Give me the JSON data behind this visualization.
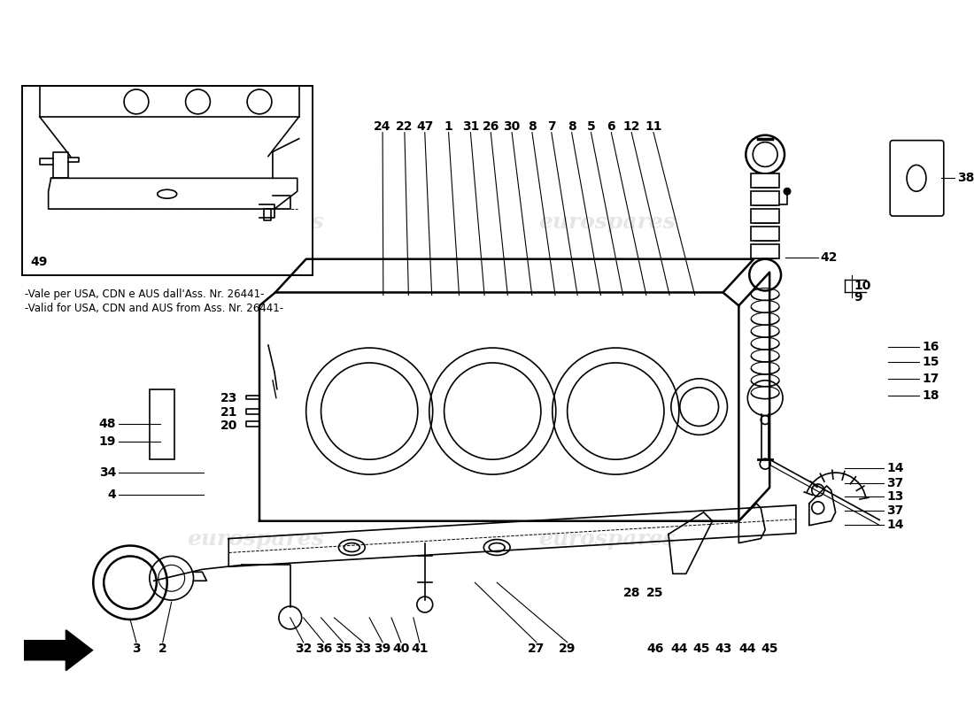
{
  "background_color": "#ffffff",
  "diagram_color": "#000000",
  "watermark_color": "#c8c8c8",
  "watermark_text": "eurospares",
  "note_text1": "-Vale per USA, CDN e AUS dall'Ass. Nr. 26441-",
  "note_text2": "-Valid for USA, CDN and AUS from Ass. Nr. 26441-",
  "part_number_inset": "49",
  "top_labels": [
    [
      "24",
      435,
      148
    ],
    [
      "22",
      460,
      148
    ],
    [
      "47",
      483,
      148
    ],
    [
      "1",
      510,
      148
    ],
    [
      "31",
      535,
      148
    ],
    [
      "26",
      558,
      148
    ],
    [
      "30",
      582,
      148
    ],
    [
      "8",
      605,
      148
    ],
    [
      "7",
      627,
      148
    ],
    [
      "8",
      650,
      148
    ],
    [
      "5",
      672,
      148
    ],
    [
      "6",
      695,
      148
    ],
    [
      "12",
      718,
      148
    ],
    [
      "11",
      743,
      148
    ]
  ],
  "right_labels": [
    [
      "42",
      875,
      265
    ],
    [
      "10",
      950,
      310
    ],
    [
      "9",
      950,
      323
    ],
    [
      "38",
      1022,
      278
    ],
    [
      "16",
      1042,
      395
    ],
    [
      "15",
      1042,
      412
    ],
    [
      "17",
      1042,
      430
    ],
    [
      "18",
      1042,
      447
    ]
  ],
  "side_right_labels": [
    [
      "14",
      1000,
      530
    ],
    [
      "37",
      1000,
      546
    ],
    [
      "13",
      1000,
      562
    ],
    [
      "37",
      1000,
      578
    ],
    [
      "14",
      1000,
      594
    ]
  ],
  "left_labels": [
    [
      "48",
      130,
      473
    ],
    [
      "19",
      130,
      497
    ],
    [
      "34",
      130,
      528
    ],
    [
      "4",
      130,
      560
    ]
  ],
  "tank_left_labels": [
    [
      "23",
      270,
      450
    ],
    [
      "21",
      270,
      466
    ],
    [
      "20",
      270,
      482
    ]
  ],
  "bottom_labels": [
    [
      "3",
      155,
      728
    ],
    [
      "2",
      185,
      728
    ],
    [
      "32",
      345,
      728
    ],
    [
      "36",
      368,
      728
    ],
    [
      "35",
      390,
      728
    ],
    [
      "33",
      413,
      728
    ],
    [
      "39",
      435,
      728
    ],
    [
      "40",
      456,
      728
    ],
    [
      "41",
      477,
      728
    ],
    [
      "27",
      610,
      728
    ],
    [
      "29",
      645,
      728
    ],
    [
      "46",
      745,
      728
    ],
    [
      "44",
      772,
      728
    ],
    [
      "45",
      797,
      728
    ],
    [
      "43",
      823,
      728
    ],
    [
      "44",
      850,
      728
    ],
    [
      "45",
      875,
      728
    ]
  ],
  "mid_labels": [
    [
      "28",
      718,
      665
    ],
    [
      "25",
      745,
      665
    ]
  ]
}
